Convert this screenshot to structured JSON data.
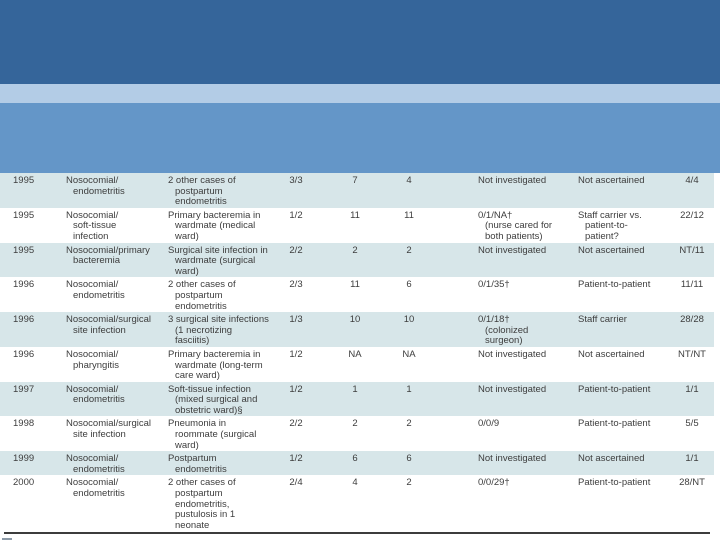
{
  "slide": {
    "colors": {
      "band_dark": "#35659A",
      "band_light": "#B3CCE6",
      "band_medium": "#6496C8",
      "row_alt": "#D7E6E9",
      "text": "#3D3D3D",
      "rule": "#3C3C3C"
    },
    "table": {
      "rows": [
        {
          "year": "1995",
          "type": "Nosocomial/\nendometritis",
          "related": "2 other cases of\npostpartum\nendometritis",
          "frac": "3/3",
          "n1": "7",
          "n2": "4",
          "investigation": "Not investigated",
          "transmission": "Not ascertained",
          "ratio": "4/4"
        },
        {
          "year": "1995",
          "type": "Nosocomial/\nsoft-tissue\ninfection",
          "related": "Primary bacteremia in\nwardmate (medical\nward)",
          "frac": "1/2",
          "n1": "11",
          "n2": "11",
          "investigation": "0/1/NA†\n(nurse cared for\nboth patients)",
          "transmission": "Staff carrier vs.\npatient-to-\npatient?",
          "ratio": "22/12"
        },
        {
          "year": "1995",
          "type": "Nosocomial/primary\nbacteremia",
          "related": "Surgical site infection in\nwardmate (surgical\nward)",
          "frac": "2/2",
          "n1": "2",
          "n2": "2",
          "investigation": "Not investigated",
          "transmission": "Not ascertained",
          "ratio": "NT/11"
        },
        {
          "year": "1996",
          "type": "Nosocomial/\nendometritis",
          "related": "2 other cases of\npostpartum\nendometritis",
          "frac": "2/3",
          "n1": "11",
          "n2": "6",
          "investigation": "0/1/35†",
          "transmission": "Patient-to-patient",
          "ratio": "11/11"
        },
        {
          "year": "1996",
          "type": "Nosocomial/surgical\nsite infection",
          "related": "3 surgical site infections\n(1 necrotizing\nfasciitis)",
          "frac": "1/3",
          "n1": "10",
          "n2": "10",
          "investigation": "0/1/18†\n(colonized\nsurgeon)",
          "transmission": "Staff carrier",
          "ratio": "28/28"
        },
        {
          "year": "1996",
          "type": "Nosocomial/\npharyngitis",
          "related": "Primary bacteremia in\nwardmate (long-term\ncare ward)",
          "frac": "1/2",
          "n1": "NA",
          "n2": "NA",
          "investigation": "Not investigated",
          "transmission": "Not ascertained",
          "ratio": "NT/NT"
        },
        {
          "year": "1997",
          "type": "Nosocomial/\nendometritis",
          "related": "Soft-tissue infection\n(mixed surgical and\nobstetric ward)§",
          "frac": "1/2",
          "n1": "1",
          "n2": "1",
          "investigation": "Not investigated",
          "transmission": "Patient-to-patient",
          "ratio": "1/1"
        },
        {
          "year": "1998",
          "type": "Nosocomial/surgical\nsite infection",
          "related": "Pneumonia in\nroommate (surgical\nward)",
          "frac": "2/2",
          "n1": "2",
          "n2": "2",
          "investigation": "0/0/9",
          "transmission": "Patient-to-patient",
          "ratio": "5/5"
        },
        {
          "year": "1999",
          "type": "Nosocomial/\nendometritis",
          "related": "Postpartum\nendometritis",
          "frac": "1/2",
          "n1": "6",
          "n2": "6",
          "investigation": "Not investigated",
          "transmission": "Not ascertained",
          "ratio": "1/1"
        },
        {
          "year": "2000",
          "type": "Nosocomial/\nendometritis",
          "related": "2 other cases of\npostpartum\nendometritis,\npustulosis in 1\nneonate",
          "frac": "2/4",
          "n1": "4",
          "n2": "2",
          "investigation": "0/0/29†",
          "transmission": "Patient-to-patient",
          "ratio": "28/NT"
        }
      ]
    }
  }
}
